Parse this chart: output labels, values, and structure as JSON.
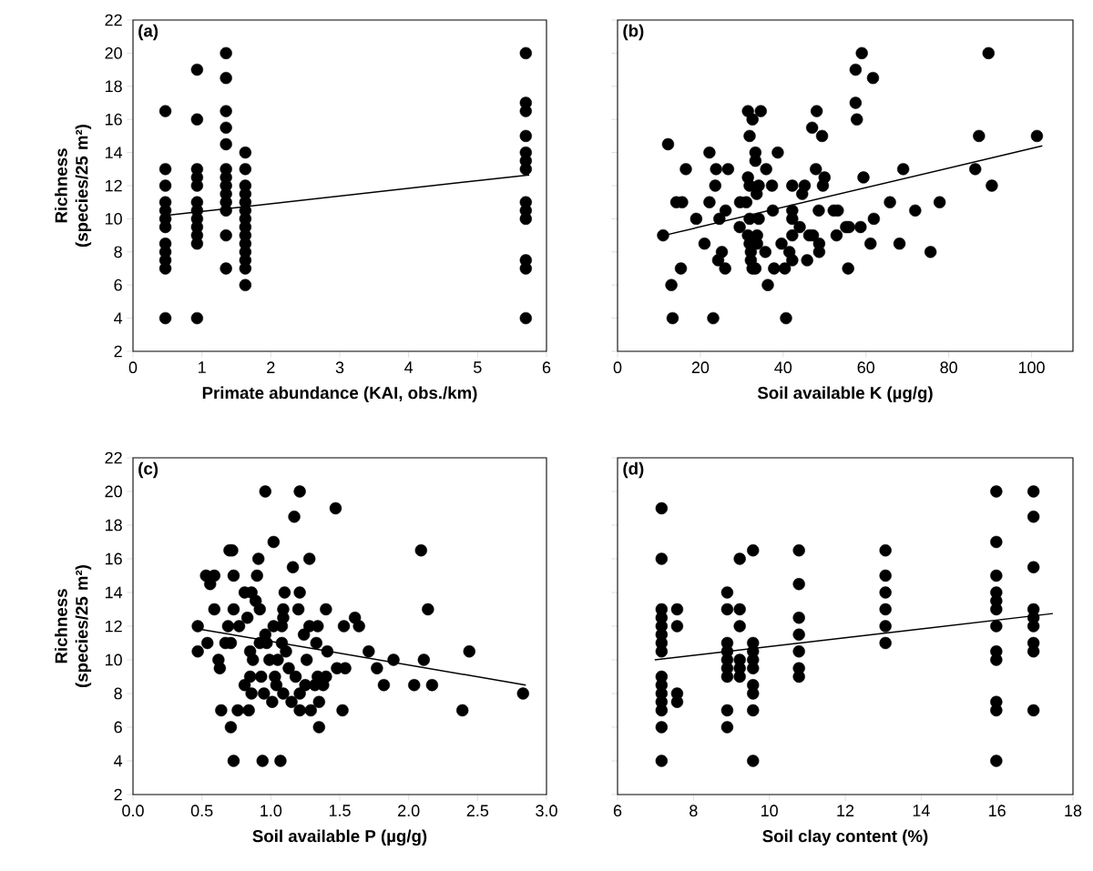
{
  "chart_data": [
    {
      "type": "scatter",
      "xlabel": "Primate abundance (KAI, obs./km)",
      "ylabel": "Richness (species/25 m²)",
      "annotations": [
        "(a)"
      ],
      "xlim": [
        0,
        6
      ],
      "ylim": [
        2,
        22
      ],
      "xticks": [
        0,
        1,
        2,
        3,
        4,
        5,
        6
      ],
      "yticks": [
        2,
        4,
        6,
        8,
        10,
        12,
        14,
        16,
        18,
        20,
        22
      ],
      "series": [
        {
          "color": "#000000",
          "marker": "circle",
          "x": [
            0.47,
            0.47,
            0.47,
            0.47,
            0.47,
            0.47,
            0.47,
            0.47,
            0.47,
            0.47,
            0.47,
            0.47,
            0.93,
            0.93,
            0.93,
            0.93,
            0.93,
            0.93,
            0.93,
            0.93,
            0.93,
            0.93,
            0.93,
            0.93,
            1.35,
            1.35,
            1.35,
            1.35,
            1.35,
            1.35,
            1.35,
            1.35,
            1.35,
            1.35,
            1.35,
            1.35,
            1.35,
            1.63,
            1.63,
            1.63,
            1.63,
            1.63,
            1.63,
            1.63,
            1.63,
            1.63,
            1.63,
            1.63,
            1.63,
            1.63,
            1.63,
            5.7,
            5.7,
            5.7,
            5.7,
            5.7,
            5.7,
            5.7,
            5.7,
            5.7,
            5.7,
            5.7,
            5.7,
            5.7
          ],
          "values": [
            16.5,
            13,
            12,
            11,
            10.5,
            10,
            9.5,
            8.5,
            8,
            7.5,
            7,
            4,
            19,
            16,
            13,
            12.5,
            12,
            11,
            10.5,
            10,
            9.5,
            9,
            8.5,
            4,
            20,
            18.5,
            16.5,
            15.5,
            14.5,
            13,
            12.5,
            12,
            11.5,
            11,
            10.5,
            9,
            7,
            14,
            13,
            12,
            11.5,
            11,
            10.5,
            10,
            9.5,
            9,
            8.5,
            8,
            7.5,
            7,
            6,
            20,
            17,
            16.5,
            15,
            14,
            13.5,
            13,
            11,
            10.5,
            10,
            7.5,
            7,
            4
          ]
        },
        {
          "type": "line",
          "color": "#000000",
          "marker": "none",
          "line_style": "solid",
          "x": [
            0.47,
            5.75
          ],
          "values": [
            10.2,
            12.65
          ]
        }
      ]
    },
    {
      "type": "scatter",
      "xlabel": "Soil available K (µg/g)",
      "annotations": [
        "(b)"
      ],
      "xlim": [
        0,
        110
      ],
      "ylim": [
        2,
        22
      ],
      "xticks": [
        0,
        20,
        40,
        60,
        80,
        100
      ],
      "yticks": [
        2,
        4,
        6,
        8,
        10,
        12,
        14,
        16,
        18,
        20,
        22
      ],
      "tick_labels": "x",
      "series": [
        {
          "color": "#000000",
          "marker": "circle",
          "x": [
            12.2,
            22.2,
            16.5,
            23.8,
            26.7,
            23.6,
            14.2,
            15.6,
            22.2,
            19,
            24.6,
            26.1,
            11,
            29.5,
            21,
            25.2,
            24.3,
            26,
            15.3,
            13,
            13.3,
            23.1,
            40.7,
            31.5,
            34.6,
            32.6,
            31.9,
            33.3,
            33.3,
            35.9,
            31.5,
            31.9,
            34.1,
            33.6,
            37.3,
            29.6,
            31.1,
            37.5,
            31.9,
            34.1,
            31.5,
            33.7,
            31.9,
            33.7,
            32.2,
            35.7,
            32.2,
            33.3,
            32.6,
            37.8,
            40.4,
            36.3,
            38.7,
            39.6,
            41.5,
            42.2,
            42.2,
            45.2,
            44.6,
            42.2,
            42.2,
            44,
            42.2,
            46.3,
            47.2,
            45.8,
            48.7,
            48.7,
            48.6,
            48.1,
            47,
            49.4,
            47.9,
            50,
            49.6,
            52.2,
            53.2,
            52.9,
            55.2,
            55.9,
            55.7,
            58.7,
            59.4,
            61.9,
            61.1,
            57.5,
            59,
            61.7,
            57.5,
            57.8,
            65.8,
            69,
            68.1,
            71.9,
            75.6,
            77.8,
            86.4,
            87.3,
            90.4,
            89.6,
            101.3
          ],
          "values": [
            14.5,
            14,
            13,
            13,
            13,
            12,
            11,
            11,
            11,
            10,
            10,
            10.5,
            9,
            9.5,
            8.5,
            8,
            7.5,
            7,
            7,
            6,
            4,
            4,
            4,
            16.5,
            16.5,
            16,
            15,
            14,
            13.5,
            13,
            12.5,
            12,
            12,
            11.5,
            12,
            11,
            11,
            10.5,
            10,
            10,
            9,
            9,
            8.5,
            8.5,
            8,
            8,
            7.5,
            7,
            7,
            7,
            7,
            6,
            14,
            8.5,
            8,
            7.5,
            12,
            12,
            11.5,
            10.5,
            10,
            9.5,
            9,
            9,
            9,
            7.5,
            8.5,
            8,
            10.5,
            16.5,
            15.5,
            15,
            13,
            12.5,
            12,
            10.5,
            10.5,
            9,
            9.5,
            9.5,
            7,
            9.5,
            12.5,
            10,
            8.5,
            19,
            20,
            18.5,
            17,
            16,
            11,
            13,
            8.5,
            10.5,
            8,
            11,
            13,
            15,
            12,
            20,
            15
          ]
        },
        {
          "type": "line",
          "color": "#000000",
          "marker": "none",
          "line_style": "solid",
          "x": [
            11.3,
            102.6
          ],
          "values": [
            9.0,
            14.4
          ]
        }
      ]
    },
    {
      "type": "scatter",
      "xlabel": "Soil available P (µg/g)",
      "ylabel": "Richness (species/25 m²)",
      "annotations": [
        "(c)"
      ],
      "xlim": [
        0,
        3
      ],
      "ylim": [
        2,
        22
      ],
      "xticks": [
        {
          "value": 0,
          "label": "0.0"
        },
        {
          "value": 0.5,
          "label": "0.5"
        },
        {
          "value": 1,
          "label": "1.0"
        },
        {
          "value": 1.5,
          "label": "1.5"
        },
        {
          "value": 2,
          "label": "2.0"
        },
        {
          "value": 2.5,
          "label": "2.5"
        },
        {
          "value": 3,
          "label": "3.0"
        }
      ],
      "yticks": [
        2,
        4,
        6,
        8,
        10,
        12,
        14,
        16,
        18,
        20,
        22
      ],
      "series": [
        {
          "color": "#000000",
          "marker": "circle",
          "x": [
            0.96,
            1.21,
            1.47,
            1.17,
            1.02,
            0.7,
            0.72,
            2.09,
            0.91,
            1.28,
            1.16,
            0.53,
            0.59,
            0.56,
            0.73,
            0.9,
            0.81,
            0.86,
            0.89,
            0.92,
            1.1,
            1.21,
            0.59,
            0.73,
            1.09,
            1.2,
            1.4,
            2.14,
            0.83,
            1.09,
            1.61,
            0.47,
            0.69,
            0.77,
            1.02,
            1.08,
            1.28,
            1.34,
            1.53,
            1.64,
            1.24,
            0.96,
            0.54,
            0.67,
            0.71,
            0.92,
            0.97,
            1.08,
            1.33,
            0.85,
            1.11,
            0.47,
            1.41,
            1.71,
            2.44,
            0.62,
            0.87,
            0.99,
            1.05,
            1.26,
            1.89,
            2.11,
            0.63,
            1.13,
            1.48,
            1.54,
            1.77,
            0.85,
            0.93,
            1.03,
            1.18,
            1.34,
            1.4,
            0.81,
            1.04,
            1.25,
            1.32,
            1.38,
            1.82,
            2.04,
            2.17,
            0.86,
            0.95,
            1.09,
            1.21,
            1.01,
            1.15,
            1.35,
            0.64,
            0.76,
            0.84,
            1.21,
            1.29,
            1.52,
            2.39,
            0.71,
            1.35,
            0.73,
            0.94,
            1.07,
            2.83
          ],
          "values": [
            20,
            20,
            19,
            18.5,
            17,
            16.5,
            16.5,
            16.5,
            16,
            16,
            15.5,
            15,
            15,
            14.5,
            15,
            15,
            14,
            14,
            13.5,
            13,
            14,
            14,
            13,
            13,
            13,
            13,
            13,
            13,
            12.5,
            12.5,
            12.5,
            12,
            12,
            12,
            12,
            12,
            12,
            12,
            12,
            12,
            11.5,
            11.5,
            11,
            11,
            11,
            11,
            11,
            11,
            11,
            10.5,
            10.5,
            10.5,
            10.5,
            10.5,
            10.5,
            10,
            10,
            10,
            10,
            10,
            10,
            10,
            9.5,
            9.5,
            9.5,
            9.5,
            9.5,
            9,
            9,
            9,
            9,
            9,
            9,
            8.5,
            8.5,
            8.5,
            8.5,
            8.5,
            8.5,
            8.5,
            8.5,
            8,
            8,
            8,
            8,
            7.5,
            7.5,
            7.5,
            7,
            7,
            7,
            7,
            7,
            7,
            7,
            6,
            6,
            4,
            4,
            4,
            8
          ]
        },
        {
          "type": "line",
          "color": "#000000",
          "marker": "none",
          "line_style": "solid",
          "x": [
            0.5,
            2.85
          ],
          "values": [
            11.8,
            8.5
          ]
        }
      ]
    },
    {
      "type": "scatter",
      "xlabel": "Soil clay content (%)",
      "annotations": [
        "(d)"
      ],
      "xlim": [
        6,
        18
      ],
      "ylim": [
        2,
        22
      ],
      "xticks": [
        6,
        8,
        10,
        12,
        14,
        16,
        18
      ],
      "yticks": [
        2,
        4,
        6,
        8,
        10,
        12,
        14,
        16,
        18,
        20,
        22
      ],
      "tick_labels": "x",
      "series": [
        {
          "color": "#000000",
          "marker": "circle",
          "x": [
            7.16,
            7.16,
            7.16,
            7.16,
            7.16,
            7.16,
            7.16,
            7.16,
            7.16,
            7.16,
            7.16,
            7.16,
            7.16,
            7.16,
            7.16,
            7.57,
            7.57,
            7.57,
            7.57,
            8.89,
            8.89,
            8.89,
            8.89,
            8.89,
            8.89,
            8.89,
            8.89,
            8.89,
            9.22,
            9.22,
            9.22,
            9.22,
            9.22,
            9.22,
            9.57,
            9.57,
            9.57,
            9.57,
            9.57,
            9.57,
            9.57,
            9.57,
            9.57,
            10.78,
            10.78,
            10.78,
            10.78,
            10.78,
            10.78,
            10.78,
            13.06,
            13.06,
            13.06,
            13.06,
            13.06,
            13.06,
            15.98,
            15.98,
            15.98,
            15.98,
            15.98,
            15.98,
            15.98,
            15.98,
            15.98,
            15.98,
            15.98,
            15.98,
            16.96,
            16.96,
            16.96,
            16.96,
            16.96,
            16.96,
            16.96,
            16.96,
            16.96
          ],
          "values": [
            19,
            16,
            13,
            12.5,
            12,
            11.5,
            11,
            10.5,
            9,
            8.5,
            8,
            7.5,
            7,
            6,
            4,
            13,
            12,
            8,
            7.5,
            14,
            13,
            11,
            10.5,
            10,
            9.5,
            9,
            7,
            6,
            16,
            13,
            12,
            10,
            9.5,
            9,
            16.5,
            11,
            10.5,
            10,
            9.5,
            8.5,
            8,
            7,
            4,
            16.5,
            14.5,
            12.5,
            11.5,
            10.5,
            9.5,
            9,
            16.5,
            15,
            14,
            13,
            12,
            11,
            20,
            17,
            15,
            14,
            13.5,
            13,
            12,
            10.5,
            10,
            7.5,
            7,
            4,
            20,
            18.5,
            15.5,
            13,
            12.5,
            12,
            11,
            10.5,
            7
          ]
        },
        {
          "type": "line",
          "color": "#000000",
          "marker": "none",
          "line_style": "solid",
          "x": [
            6.98,
            17.47
          ],
          "values": [
            10.0,
            12.75
          ]
        }
      ]
    }
  ]
}
